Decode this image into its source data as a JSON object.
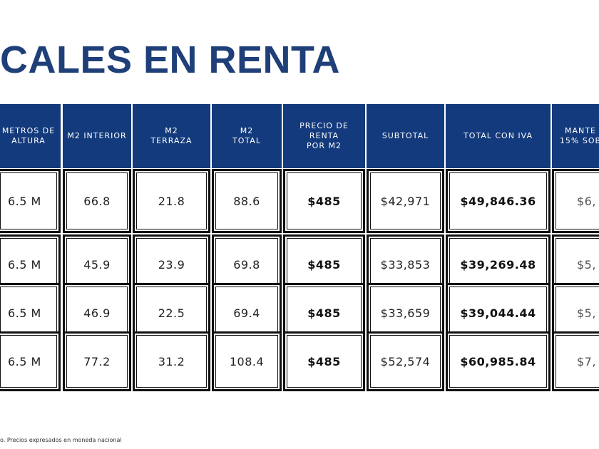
{
  "title": "CALES EN RENTA",
  "table": {
    "headers": [
      "METROS DE\nALTURA",
      "M2 INTERIOR",
      "M2\nTERRAZA",
      "M2\nTOTAL",
      "PRECIO DE\nRENTA\nPOR M2",
      "SUBTOTAL",
      "TOTAL CON IVA",
      "MANTE\n15% SOB"
    ],
    "rows": [
      [
        "6.5 M",
        "66.8",
        "21.8",
        "88.6",
        "$485",
        "$42,971",
        "$49,846.36",
        "$6,"
      ],
      [
        "6.5 M",
        "45.9",
        "23.9",
        "69.8",
        "$485",
        "$33,853",
        "$39,269.48",
        "$5,"
      ],
      [
        "6.5 M",
        "46.9",
        "22.5",
        "69.4",
        "$485",
        "$33,659",
        "$39,044.44",
        "$5,"
      ],
      [
        "6.5 M",
        "77.2",
        "31.2",
        "108.4",
        "$485",
        "$52,574",
        "$60,985.84",
        "$7,"
      ]
    ]
  },
  "footnote": "o. Precios expresados en moneda nacional",
  "colors": {
    "header_bg": "#133a7c",
    "title": "#1f3f79",
    "border": "#111111"
  }
}
